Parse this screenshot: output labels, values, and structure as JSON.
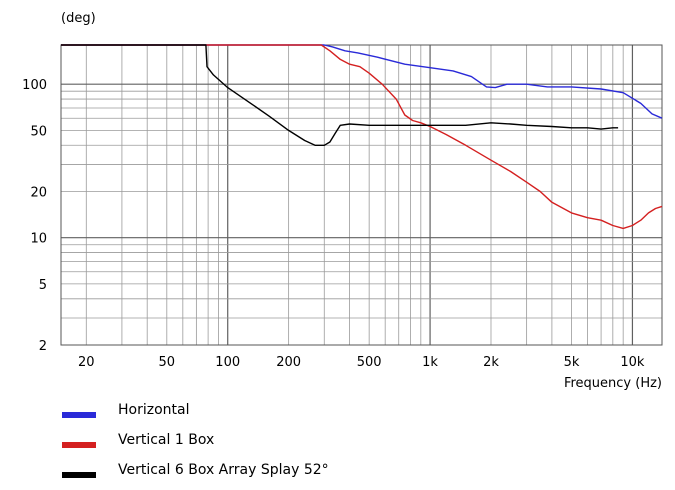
{
  "chart_data": {
    "type": "line",
    "title": "",
    "ylabel": "(deg)",
    "xlabel": "Frequency  (Hz)",
    "x_scale": "log",
    "y_scale": "log",
    "xlim": [
      15,
      14000
    ],
    "ylim": [
      2,
      180
    ],
    "x_tick_labels": [
      {
        "value": 20,
        "label": "20"
      },
      {
        "value": 50,
        "label": "50"
      },
      {
        "value": 100,
        "label": "100"
      },
      {
        "value": 200,
        "label": "200"
      },
      {
        "value": 500,
        "label": "500"
      },
      {
        "value": 1000,
        "label": "1k"
      },
      {
        "value": 2000,
        "label": "2k"
      },
      {
        "value": 5000,
        "label": "5k"
      },
      {
        "value": 10000,
        "label": "10k"
      }
    ],
    "y_tick_labels": [
      {
        "value": 2,
        "label": "2"
      },
      {
        "value": 5,
        "label": "5"
      },
      {
        "value": 10,
        "label": "10"
      },
      {
        "value": 20,
        "label": "20"
      },
      {
        "value": 50,
        "label": "50"
      },
      {
        "value": 100,
        "label": "100"
      }
    ],
    "grid": true,
    "legend_position": "bottom-left",
    "series": [
      {
        "name": "Horizontal",
        "color": "#2a2ad8",
        "points": [
          [
            15,
            180
          ],
          [
            300,
            180
          ],
          [
            330,
            175
          ],
          [
            380,
            165
          ],
          [
            440,
            160
          ],
          [
            550,
            150
          ],
          [
            750,
            135
          ],
          [
            1000,
            128
          ],
          [
            1300,
            122
          ],
          [
            1600,
            112
          ],
          [
            1900,
            96
          ],
          [
            2100,
            95
          ],
          [
            2400,
            100
          ],
          [
            3000,
            100
          ],
          [
            3800,
            96
          ],
          [
            5000,
            96
          ],
          [
            7000,
            93
          ],
          [
            9000,
            88
          ],
          [
            11000,
            75
          ],
          [
            12500,
            64
          ],
          [
            14000,
            60
          ]
        ]
      },
      {
        "name": "Vertical 1 Box",
        "color": "#d42020",
        "points": [
          [
            15,
            180
          ],
          [
            290,
            180
          ],
          [
            320,
            165
          ],
          [
            360,
            145
          ],
          [
            400,
            135
          ],
          [
            450,
            130
          ],
          [
            500,
            118
          ],
          [
            580,
            100
          ],
          [
            680,
            80
          ],
          [
            750,
            63
          ],
          [
            820,
            58
          ],
          [
            900,
            56
          ],
          [
            1000,
            53
          ],
          [
            1200,
            47
          ],
          [
            1500,
            40
          ],
          [
            2000,
            32
          ],
          [
            2500,
            27
          ],
          [
            3000,
            23
          ],
          [
            3500,
            20
          ],
          [
            4000,
            17
          ],
          [
            5000,
            14.5
          ],
          [
            6000,
            13.5
          ],
          [
            7000,
            13
          ],
          [
            8000,
            12
          ],
          [
            9000,
            11.5
          ],
          [
            10000,
            12
          ],
          [
            11000,
            13
          ],
          [
            12000,
            14.5
          ],
          [
            13000,
            15.5
          ],
          [
            14000,
            16
          ]
        ]
      },
      {
        "name": "Vertical 6 Box Array Splay 52°",
        "color": "#000000",
        "points": [
          [
            15,
            180
          ],
          [
            78,
            180
          ],
          [
            79,
            130
          ],
          [
            85,
            115
          ],
          [
            100,
            95
          ],
          [
            130,
            75
          ],
          [
            160,
            62
          ],
          [
            200,
            50
          ],
          [
            240,
            43
          ],
          [
            270,
            40
          ],
          [
            300,
            40
          ],
          [
            320,
            42
          ],
          [
            340,
            48
          ],
          [
            360,
            54
          ],
          [
            400,
            55
          ],
          [
            500,
            54
          ],
          [
            700,
            54
          ],
          [
            1000,
            54
          ],
          [
            1500,
            54
          ],
          [
            2000,
            56
          ],
          [
            2500,
            55
          ],
          [
            3000,
            54
          ],
          [
            4000,
            53
          ],
          [
            5000,
            52
          ],
          [
            6000,
            52
          ],
          [
            7000,
            51
          ],
          [
            8000,
            52
          ],
          [
            8500,
            52
          ]
        ]
      }
    ]
  }
}
